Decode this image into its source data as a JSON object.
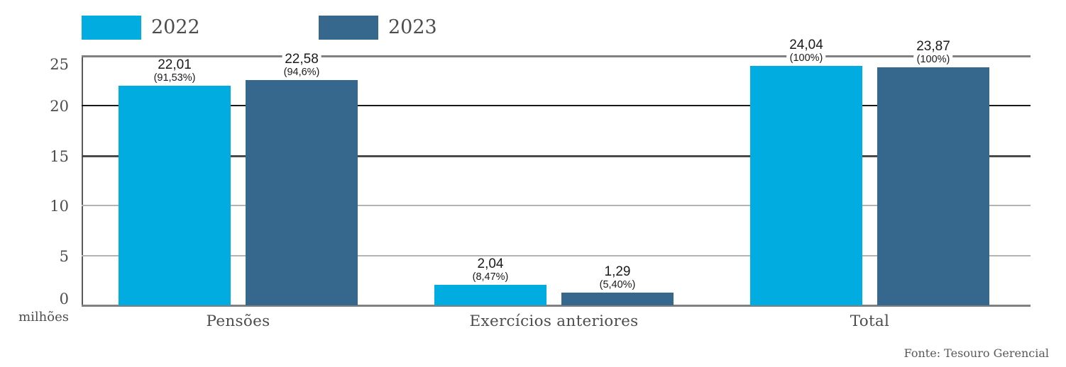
{
  "axis": {
    "unit_label": "milhões",
    "tick_labels": [
      "0",
      "5",
      "10",
      "15",
      "20",
      "25"
    ]
  },
  "footer": {
    "source": "Fonte: Tesouro Gerencial"
  },
  "chart_data": {
    "type": "bar",
    "title": "",
    "categories": [
      "Pensões",
      "Exercícios anteriores",
      "Total"
    ],
    "series": [
      {
        "name": "2022",
        "color": "#00ACE0",
        "values": [
          22.01,
          2.04,
          24.04
        ],
        "value_labels": [
          "22,01",
          "2,04",
          "24,04"
        ],
        "percent_labels": [
          "(91,53%)",
          "(8,47%)",
          "(100%)"
        ]
      },
      {
        "name": "2023",
        "color": "#35688C",
        "values": [
          22.58,
          1.29,
          23.87
        ],
        "value_labels": [
          "22,58",
          "1,29",
          "23,87"
        ],
        "percent_labels": [
          "(94,6%)",
          "(5,40%)",
          "(100%)"
        ]
      }
    ],
    "xlabel": "",
    "ylabel": "milhões",
    "ylim": [
      0,
      25
    ],
    "yticks": [
      0,
      5,
      10,
      15,
      20,
      25
    ],
    "grid": true,
    "legend_position": "top",
    "source": "Fonte: Tesouro Gerencial"
  }
}
